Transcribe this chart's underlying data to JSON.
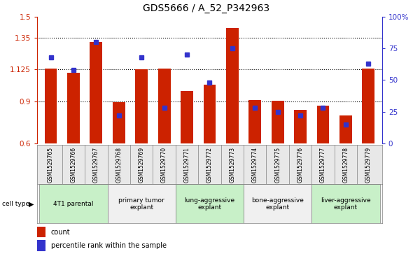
{
  "title": "GDS5666 / A_52_P342963",
  "samples": [
    "GSM1529765",
    "GSM1529766",
    "GSM1529767",
    "GSM1529768",
    "GSM1529769",
    "GSM1529770",
    "GSM1529771",
    "GSM1529772",
    "GSM1529773",
    "GSM1529774",
    "GSM1529775",
    "GSM1529776",
    "GSM1529777",
    "GSM1529778",
    "GSM1529779"
  ],
  "counts": [
    1.13,
    1.1,
    1.32,
    0.895,
    1.125,
    1.13,
    0.97,
    1.015,
    1.42,
    0.91,
    0.905,
    0.84,
    0.87,
    0.8,
    1.13
  ],
  "percentile_ranks": [
    68,
    58,
    80,
    22,
    68,
    28,
    70,
    48,
    75,
    28,
    25,
    22,
    28,
    15,
    63
  ],
  "bar_bottom": 0.6,
  "ylim_left": [
    0.6,
    1.5
  ],
  "ylim_right": [
    0,
    100
  ],
  "yticks_left": [
    0.6,
    0.9,
    1.125,
    1.35,
    1.5
  ],
  "ytick_labels_left": [
    "0.6",
    "0.9",
    "1.125",
    "1.35",
    "1.5"
  ],
  "yticks_right": [
    0,
    25,
    50,
    75,
    100
  ],
  "ytick_labels_right": [
    "0",
    "25",
    "50",
    "75",
    "100%"
  ],
  "cell_types": [
    {
      "label": "4T1 parental",
      "start": 0,
      "end": 3,
      "color": "#c8f0c8"
    },
    {
      "label": "primary tumor\nexplant",
      "start": 3,
      "end": 6,
      "color": "#f0f0f0"
    },
    {
      "label": "lung-aggressive\nexplant",
      "start": 6,
      "end": 9,
      "color": "#c8f0c8"
    },
    {
      "label": "bone-aggressive\nexplant",
      "start": 9,
      "end": 12,
      "color": "#f0f0f0"
    },
    {
      "label": "liver-aggressive\nexplant",
      "start": 12,
      "end": 15,
      "color": "#c8f0c8"
    }
  ],
  "bar_color": "#cc2200",
  "dot_color": "#3333cc",
  "bar_width": 0.55,
  "dot_size": 4,
  "title_fontsize": 10,
  "tick_fontsize": 7.5,
  "sample_fontsize": 5.5,
  "celltype_fontsize": 6.5,
  "legend_fontsize": 7
}
